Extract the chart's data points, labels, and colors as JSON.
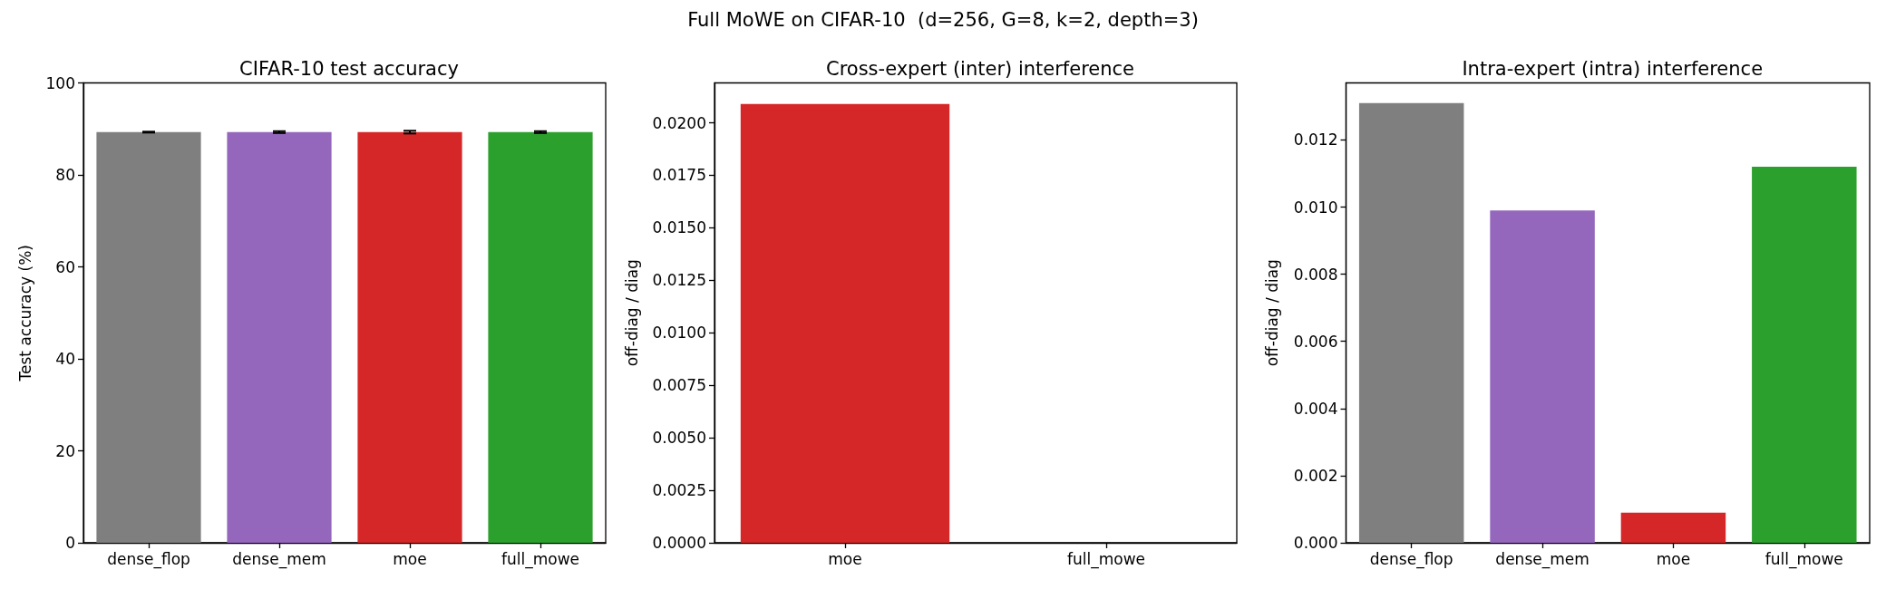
{
  "chart_data": [
    {
      "type": "bar",
      "title": "CIFAR-10 test accuracy",
      "ylabel": "Test accuracy (%)",
      "annotations": [
        "Full MoWE on CIFAR-10  (d=256, G=8, k=2, depth=3)"
      ],
      "categories": [
        "dense_flop",
        "dense_mem",
        "moe",
        "full_mowe"
      ],
      "values": [
        89.3,
        89.3,
        89.3,
        89.3
      ],
      "errors": [
        0.1,
        0.2,
        0.3,
        0.2
      ],
      "colors": [
        "#7f7f7f",
        "#9467bd",
        "#d62728",
        "#2ca02c"
      ],
      "ylim": [
        0,
        100
      ],
      "yticks": [
        0,
        20,
        40,
        60,
        80,
        100
      ]
    },
    {
      "type": "bar",
      "title": "Cross-expert (inter) interference",
      "ylabel": "off-diag / diag",
      "categories": [
        "moe",
        "full_mowe"
      ],
      "values": [
        0.0209,
        0
      ],
      "colors": [
        "#d62728",
        "#2ca02c"
      ],
      "ylim": [
        0,
        0.0219
      ],
      "yticks": [
        {
          "value": 0,
          "label": "0.0000"
        },
        {
          "value": 0.0025,
          "label": "0.0025"
        },
        {
          "value": 0.005,
          "label": "0.0050"
        },
        {
          "value": 0.0075,
          "label": "0.0075"
        },
        {
          "value": 0.01,
          "label": "0.0100"
        },
        {
          "value": 0.0125,
          "label": "0.0125"
        },
        {
          "value": 0.015,
          "label": "0.0150"
        },
        {
          "value": 0.0175,
          "label": "0.0175"
        },
        {
          "value": 0.02,
          "label": "0.0200"
        }
      ]
    },
    {
      "type": "bar",
      "title": "Intra-expert (intra) interference",
      "ylabel": "off-diag / diag",
      "categories": [
        "dense_flop",
        "dense_mem",
        "moe",
        "full_mowe"
      ],
      "values": [
        0.0131,
        0.0099,
        0.0009,
        0.0112
      ],
      "colors": [
        "#7f7f7f",
        "#9467bd",
        "#d62728",
        "#2ca02c"
      ],
      "ylim": [
        0,
        0.0137
      ],
      "yticks": [
        {
          "value": 0,
          "label": "0.000"
        },
        {
          "value": 0.002,
          "label": "0.002"
        },
        {
          "value": 0.004,
          "label": "0.004"
        },
        {
          "value": 0.006,
          "label": "0.006"
        },
        {
          "value": 0.008,
          "label": "0.008"
        },
        {
          "value": 0.01,
          "label": "0.010"
        },
        {
          "value": 0.012,
          "label": "0.012"
        }
      ]
    }
  ]
}
